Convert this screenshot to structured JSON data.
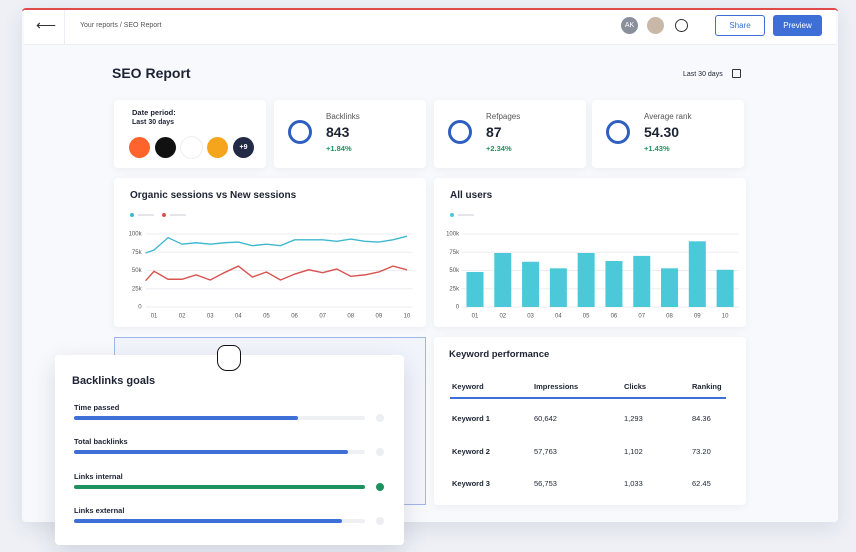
{
  "topbar": {
    "breadcrumb": "Your reports / SEO Report",
    "avatar": "AK",
    "share": "Share",
    "preview": "Preview"
  },
  "header": {
    "title": "SEO Report",
    "date_range": "Last 30 days"
  },
  "date_card": {
    "label": "Date period:",
    "period": "Last 30 days",
    "more_sources": "+9"
  },
  "kpis": [
    {
      "label": "Backlinks",
      "value": "843",
      "change": "+1.84%"
    },
    {
      "label": "Refpages",
      "value": "87",
      "change": "+2.34%"
    },
    {
      "label": "Average rank",
      "value": "54.30",
      "change": "+1.43%"
    }
  ],
  "charts": [
    {
      "chart_data": {
        "type": "line",
        "title": "Organic sessions vs New sessions",
        "x": [
          0.7,
          1,
          1.5,
          2,
          2.5,
          3,
          3.5,
          4,
          4.5,
          5,
          5.5,
          6,
          6.5,
          7,
          7.5,
          8,
          8.5,
          9,
          9.5,
          10
        ],
        "xlim": [
          0.7,
          10.2
        ],
        "xticks": [
          {
            "value": 1,
            "label": "01"
          },
          {
            "value": 2,
            "label": "02"
          },
          {
            "value": 3,
            "label": "03"
          },
          {
            "value": 4,
            "label": "04"
          },
          {
            "value": 5,
            "label": "05"
          },
          {
            "value": 6,
            "label": "06"
          },
          {
            "value": 7,
            "label": "07"
          },
          {
            "value": 8,
            "label": "08"
          },
          {
            "value": 9,
            "label": "09"
          },
          {
            "value": 10,
            "label": "10"
          }
        ],
        "ylim": [
          0,
          110000
        ],
        "yticks": [
          0,
          {
            "value": 25000,
            "label": "25k"
          },
          {
            "value": 50000,
            "label": "50k"
          },
          {
            "value": 75000,
            "label": "75k"
          },
          {
            "value": 100000,
            "label": "100k"
          }
        ],
        "grid": true,
        "series": [
          {
            "color": "#3fb8cf",
            "values": [
              74000,
              78000,
              95000,
              86000,
              88000,
              86000,
              88000,
              89000,
              84000,
              86000,
              84000,
              92000,
              92000,
              92000,
              90000,
              93000,
              90000,
              89000,
              92000,
              97000
            ]
          },
          {
            "color": "#d9534f",
            "values": [
              36000,
              49000,
              38000,
              38000,
              44000,
              37000,
              47000,
              56000,
              41000,
              48000,
              37000,
              45000,
              51000,
              47000,
              52000,
              42000,
              44000,
              48000,
              56000,
              51000
            ]
          }
        ]
      }
    },
    {
      "chart_data": {
        "type": "bar",
        "title": "All users",
        "categories": [
          "01",
          "02",
          "03",
          "04",
          "05",
          "06",
          "07",
          "08",
          "09",
          "10"
        ],
        "values": [
          48000,
          74000,
          62000,
          53000,
          74000,
          63000,
          70000,
          53000,
          90000,
          51000
        ],
        "color": "#4cc9d9",
        "ylim": [
          0,
          110000
        ],
        "yticks": [
          0,
          {
            "value": 25000,
            "label": "25k"
          },
          {
            "value": 50000,
            "label": "50k"
          },
          {
            "value": 75000,
            "label": "75k"
          },
          {
            "value": 100000,
            "label": "100k"
          }
        ],
        "grid": true
      }
    }
  ],
  "goals": {
    "title": "Backlinks goals",
    "items": [
      {
        "label": "Time passed",
        "progress": 77,
        "color": "#3d6fd6"
      },
      {
        "label": "Total backlinks",
        "progress": 94,
        "color": "#3d6fd6"
      },
      {
        "label": "Links internal",
        "progress": 100,
        "color": "#1e9160"
      },
      {
        "label": "Links external",
        "progress": 92,
        "color": "#3d6fd6"
      }
    ]
  },
  "keywords": {
    "title": "Keyword performance",
    "columns": [
      "Keyword",
      "Impressions",
      "Clicks",
      "Ranking"
    ],
    "rows": [
      [
        "Keyword 1",
        "60,642",
        "1,293",
        "84.36"
      ],
      [
        "Keyword 2",
        "57,763",
        "1,102",
        "73.20"
      ],
      [
        "Keyword 3",
        "56,753",
        "1,033",
        "62.45"
      ]
    ]
  }
}
